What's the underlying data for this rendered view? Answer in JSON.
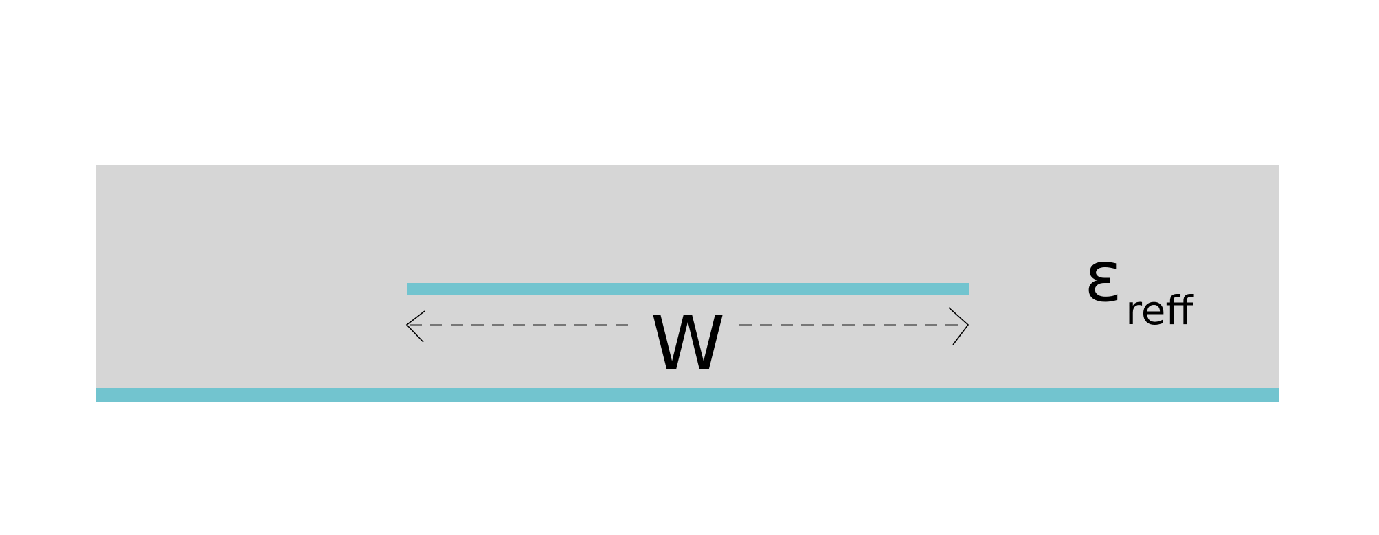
{
  "diagram": {
    "width_label": "W",
    "permittivity_symbol": "ε",
    "permittivity_subscript": "reff"
  },
  "colors": {
    "background": "#ffffff",
    "substrate": "#d6d6d6",
    "conductor": "#72c4cf",
    "dimension_line": "#777777",
    "arrow": "#000000",
    "text": "#000000"
  }
}
